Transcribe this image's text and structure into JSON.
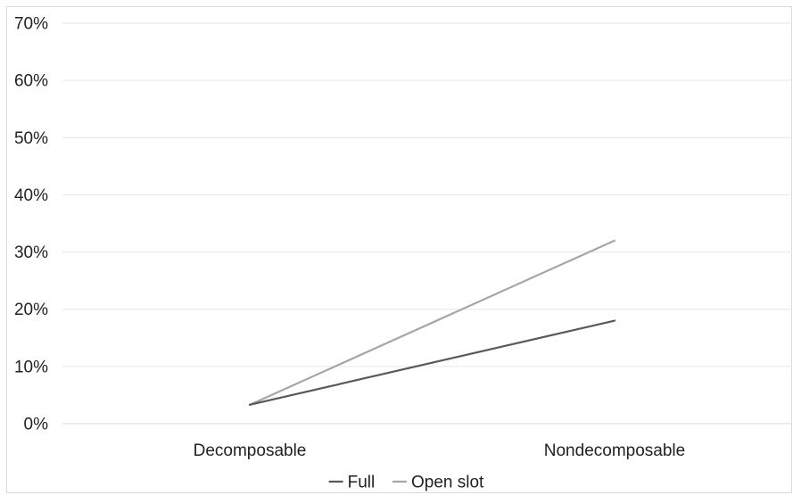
{
  "chart_data": {
    "type": "line",
    "title": "",
    "xlabel": "",
    "ylabel": "",
    "categories": [
      "Decomposable",
      "Nondecomposable"
    ],
    "y_tick_labels": [
      "0%",
      "10%",
      "20%",
      "30%",
      "40%",
      "50%",
      "60%",
      "70%"
    ],
    "ylim": [
      0,
      70
    ],
    "y_unit": "%",
    "grid": true,
    "legend_position": "bottom",
    "series": [
      {
        "name": "Full",
        "values": [
          3.3,
          18
        ],
        "color": "#595959"
      },
      {
        "name": "Open slot",
        "values": [
          3.3,
          32
        ],
        "color": "#a6a6a6"
      }
    ]
  }
}
